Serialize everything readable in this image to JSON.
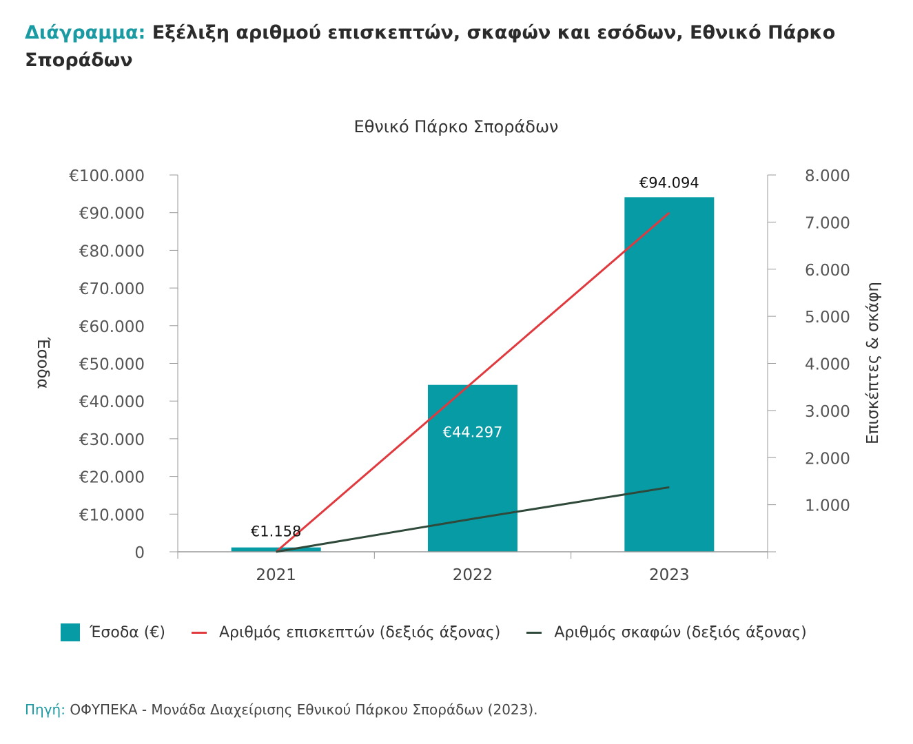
{
  "header": {
    "prefix": "Διάγραμμα:",
    "title": "Εξέλιξη αριθμού επισκεπτών, σκαφών και εσόδων, Εθνικό Πάρκο Σποράδων"
  },
  "colors": {
    "accent": "#1a9aa3",
    "bar": "#079ba6",
    "visitors": "#e0393e",
    "boats": "#2f4a3a"
  },
  "chart_data": {
    "type": "bar",
    "title": "Εθνικό Πάρκο Σποράδων",
    "categories": [
      "2021",
      "2022",
      "2023"
    ],
    "ylabel": "Έσοδα",
    "y2label": "Επισκέπτες & σκάφη",
    "ylim": [
      0,
      100000
    ],
    "y2lim": [
      0,
      8000
    ],
    "y_ticks": [
      "0",
      "€10.000",
      "€20.000",
      "€30.000",
      "€40.000",
      "€50.000",
      "€60.000",
      "€70.000",
      "€80.000",
      "€90.000",
      "€100.000"
    ],
    "y2_ticks": [
      "1.000",
      "2.000",
      "3.000",
      "4.000",
      "5.000",
      "6.000",
      "7.000",
      "8.000"
    ],
    "grid": false,
    "legend_position": "bottom",
    "series": [
      {
        "name": "Έσοδα (€)",
        "type": "bar",
        "axis": "left",
        "values": [
          1158,
          44297,
          94094
        ],
        "labels": [
          "€1.158",
          "€44.297",
          "€94.094"
        ]
      },
      {
        "name": "Αριθμός επισκεπτών (δεξιός άξονας)",
        "type": "line",
        "axis": "right",
        "values": [
          0,
          3600,
          7200
        ]
      },
      {
        "name": "Αριθμός σκαφών (δεξιός άξονας)",
        "type": "line",
        "axis": "right",
        "values": [
          0,
          700,
          1370
        ]
      }
    ]
  },
  "source": {
    "label": "Πηγή:",
    "text": "ΟΦΥΠΕΚΑ - Μονάδα Διαχείρισης Εθνικού Πάρκου Σποράδων (2023)."
  }
}
